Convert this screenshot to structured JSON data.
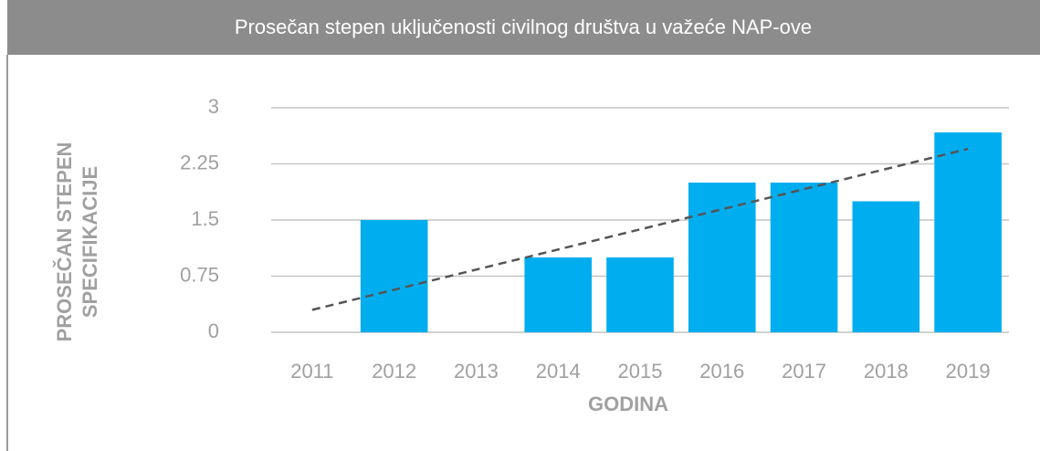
{
  "chart_data": {
    "type": "bar",
    "title": "Prosečan stepen uključenosti civilnog društva u važeće NAP-ove",
    "x_label": "GODINA",
    "y_label": [
      "PROSEČAN STEPEN",
      "SPECIFIKACIJE"
    ],
    "categories": [
      "2011",
      "2012",
      "2013",
      "2014",
      "2015",
      "2016",
      "2017",
      "2018",
      "2019"
    ],
    "values": [
      0,
      1.5,
      0,
      1,
      1,
      2,
      2,
      1.75,
      2.67
    ],
    "color": "#00aeef",
    "trendline": {
      "values": [
        0.3,
        2.45
      ],
      "color": "#555555"
    },
    "ylim": [
      0,
      3
    ],
    "yticks": [
      0,
      0.75,
      1.5,
      2.25,
      3
    ],
    "grid": true
  }
}
